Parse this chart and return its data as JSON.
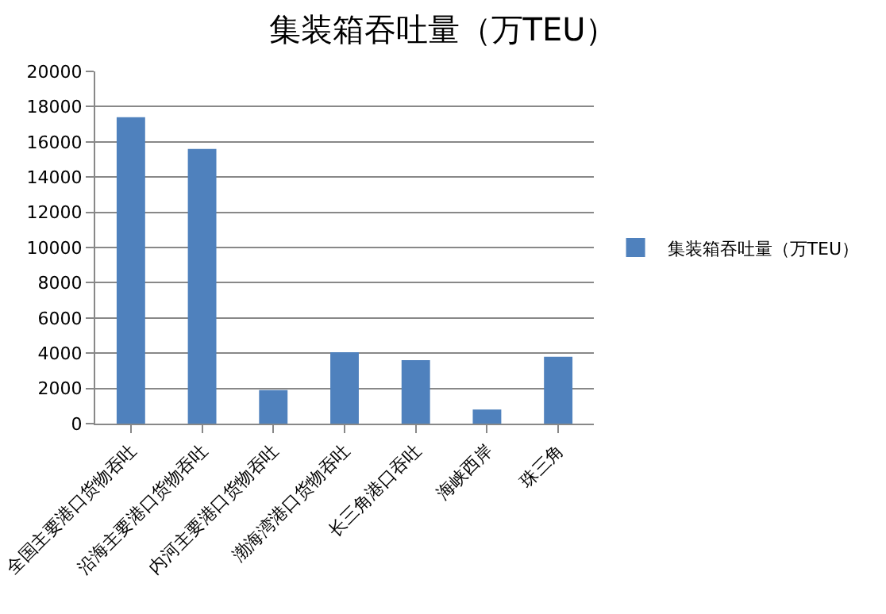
{
  "chart_data": {
    "type": "bar",
    "title": "集装箱吞吐量（万TEU）",
    "categories": [
      "全国主要港口货物吞吐",
      "沿海主要港口货物吞吐",
      "内河主要港口货物吞吐",
      "渤海湾港口货物吞吐",
      "长三角港口吞吐",
      "海峡西岸",
      "珠三角"
    ],
    "series": [
      {
        "name": "集装箱吞吐量（万TEU）",
        "color": "#4f81bd",
        "values": [
          17400,
          15600,
          1900,
          4050,
          3600,
          800,
          3800
        ]
      }
    ],
    "ylim": [
      0,
      20000
    ],
    "yticks": [
      0,
      2000,
      4000,
      6000,
      8000,
      10000,
      12000,
      14000,
      16000,
      18000,
      20000
    ],
    "grid": "y",
    "legend": "right"
  }
}
